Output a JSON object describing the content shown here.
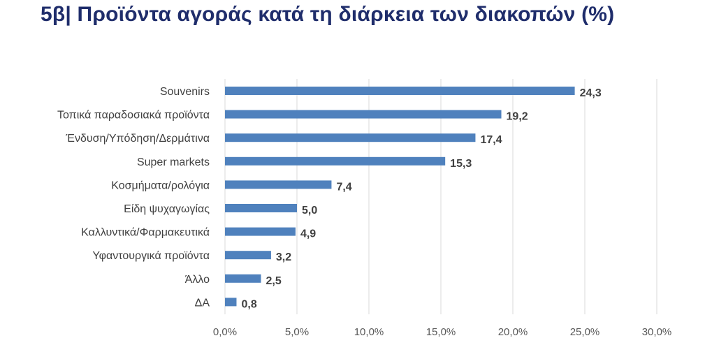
{
  "title": "5β| Προϊόντα αγοράς κατά τη διάρκεια των διακοπών (%)",
  "chart_data": {
    "type": "bar",
    "orientation": "horizontal",
    "title": "5β| Προϊόντα αγοράς κατά τη διάρκεια των διακοπών (%)",
    "xlabel": "",
    "ylabel": "",
    "categories": [
      "Souvenirs",
      "Τοπικά παραδοσιακά προϊόντα",
      "Ένδυση/Υπόδηση/Δερμάτινα",
      "Super markets",
      "Κοσμήματα/ρολόγια",
      "Είδη ψυχαγωγίας",
      "Καλλυντικά/Φαρμακευτικά",
      "Υφαντουργικά προϊόντα",
      "Άλλο",
      "ΔΑ"
    ],
    "values": [
      24.3,
      19.2,
      17.4,
      15.3,
      7.4,
      5.0,
      4.9,
      3.2,
      2.5,
      0.8
    ],
    "data_labels": [
      "24,3",
      "19,2",
      "17,4",
      "15,3",
      "7,4",
      "5,0",
      "4,9",
      "3,2",
      "2,5",
      "0,8"
    ],
    "xlim": [
      0,
      30
    ],
    "xticks": [
      0,
      5,
      10,
      15,
      20,
      25,
      30
    ],
    "xtick_labels": [
      "0,0%",
      "5,0%",
      "10,0%",
      "15,0%",
      "20,0%",
      "25,0%",
      "30,0%"
    ],
    "grid": "vertical",
    "legend": "none",
    "bar_color": "#4f81bd",
    "grid_color": "#d9d9d9"
  }
}
